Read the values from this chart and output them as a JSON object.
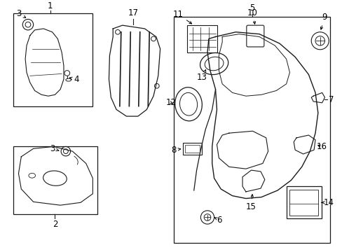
{
  "bg_color": "#ffffff",
  "line_color": "#1a1a1a",
  "font_size": 8.5
}
